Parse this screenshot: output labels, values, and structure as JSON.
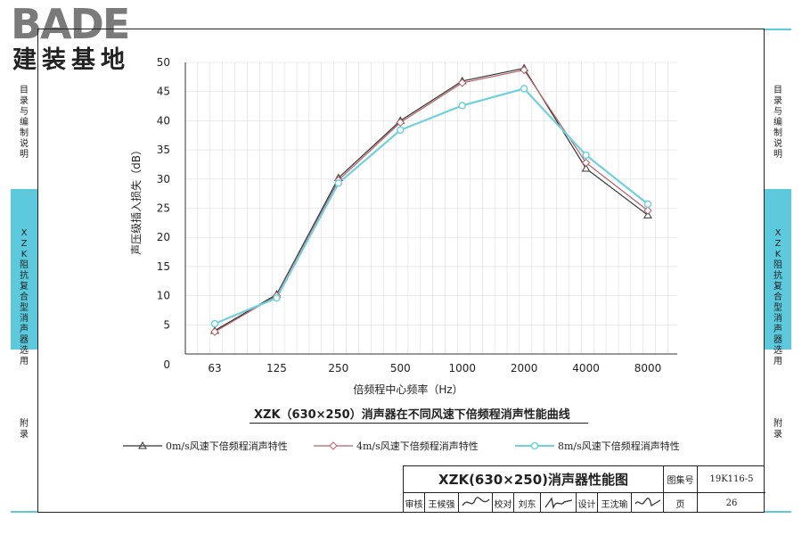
{
  "logo": {
    "letters": "BADE",
    "chinese": "建装基地"
  },
  "left_sidebar": {
    "items": [
      {
        "label": "目录与编制说明"
      },
      {
        "label": "XZK阻抗复合型消声器选用"
      },
      {
        "label": "附录"
      }
    ]
  },
  "right_sidebar": {
    "items": [
      {
        "label": "目录与编制说明"
      },
      {
        "label": "XZK阻抗复合型消声器选用"
      },
      {
        "label": "附录"
      }
    ]
  },
  "colors": {
    "accent_tab": "#5cc9dd",
    "series_0": "#333333",
    "series_4": "#b5606a",
    "series_8": "#6fd1dc",
    "grid": "#dddddd"
  },
  "chart_data": {
    "type": "line",
    "title": "XZK（630×250）消声器在不同风速下倍频程消声性能曲线",
    "xlabel": "倍频程中心频率（Hz）",
    "ylabel": "声压级插入损失（dB）",
    "categories": [
      "63",
      "125",
      "250",
      "500",
      "1000",
      "2000",
      "4000",
      "8000"
    ],
    "y_ticks": [
      "0",
      "5",
      "10",
      "15",
      "20",
      "25",
      "30",
      "35",
      "40",
      "45",
      "50"
    ],
    "ylim": [
      0,
      50
    ],
    "grid": true,
    "legend_position": "bottom",
    "series": [
      {
        "name": "0m/s风速下倍频程消声特性",
        "marker": "triangle",
        "color": "#333333",
        "values": [
          4.0,
          10.2,
          30.2,
          40.0,
          46.8,
          49.0,
          31.8,
          23.8
        ]
      },
      {
        "name": "4m/s风速下倍频程消声特性",
        "marker": "diamond",
        "color": "#b5606a",
        "values": [
          3.8,
          10.0,
          29.8,
          39.7,
          46.5,
          48.7,
          32.8,
          24.6
        ]
      },
      {
        "name": "8m/s风速下倍频程消声特性",
        "marker": "circle",
        "color": "#6fd1dc",
        "values": [
          5.2,
          9.6,
          29.3,
          38.4,
          42.6,
          45.5,
          34.1,
          25.7
        ]
      }
    ]
  },
  "title_block": {
    "drawing_title": "XZK(630×250)消声器性能图",
    "atlas_label": "图集号",
    "atlas_no": "19K116-5",
    "review_label": "审核",
    "reviewer": "王候强",
    "check_label": "校对",
    "checker": "刘东",
    "design_label": "设计",
    "designer": "王沈瑜",
    "page_label": "页",
    "page_no": "26"
  }
}
